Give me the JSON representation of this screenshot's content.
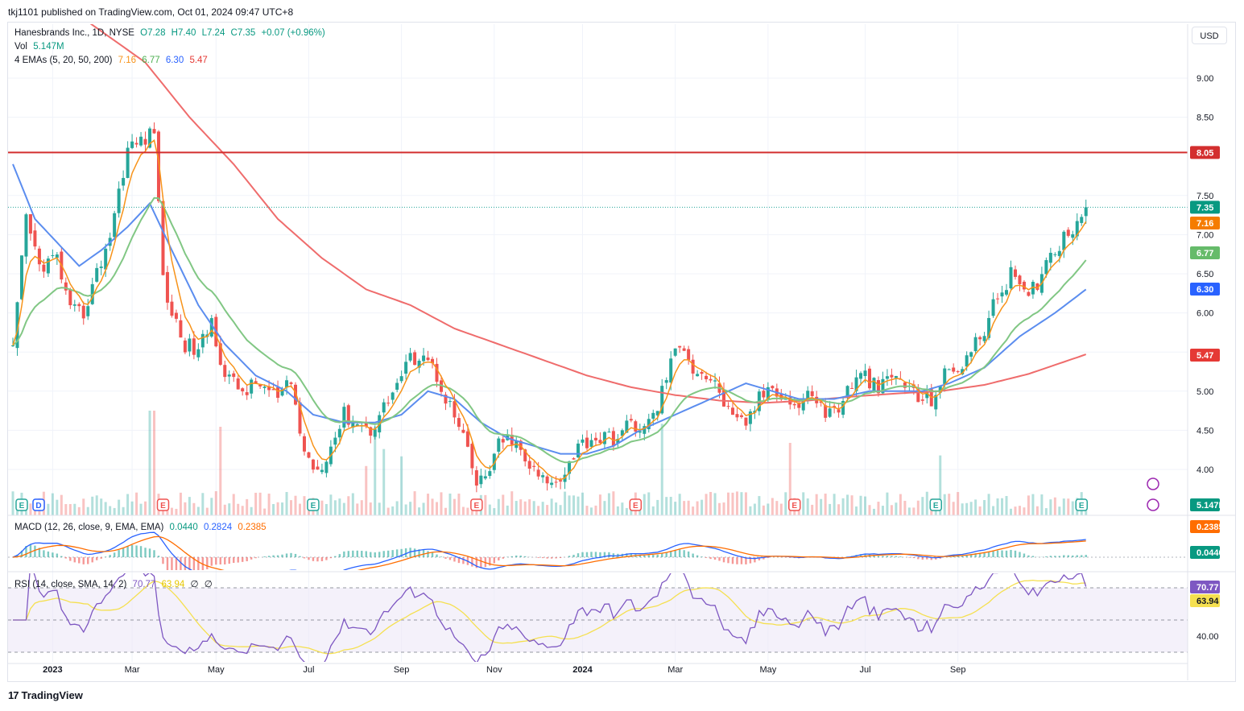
{
  "published_by": "tkj1101 published on TradingView.com, Oct 01, 2024 09:47 UTC+8",
  "currency_button": "USD",
  "footer_logo": "TradingView",
  "legend": {
    "symbol": "Hanesbrands Inc., 1D, NYSE",
    "open": "O7.28",
    "high": "H7.40",
    "low": "L7.24",
    "close": "C7.35",
    "change": "+0.07 (+0.96%)",
    "vol_label": "Vol",
    "vol_value": "5.147M",
    "ema_label": "4 EMAs (5, 20, 50, 200)",
    "ema5": "7.16",
    "ema20": "6.77",
    "ema50": "6.30",
    "ema200": "5.47",
    "macd_label": "MACD (12, 26, close, 9, EMA, EMA)",
    "macd_hist": "0.0440",
    "macd_line": "0.2824",
    "macd_signal": "0.2385",
    "rsi_label": "RSI (14, close, SMA, 14, 2)",
    "rsi_value": "70.77",
    "rsi_ma": "63.94",
    "rsi_extra1": "∅",
    "rsi_extra2": "∅"
  },
  "colors": {
    "up": "#26a69a",
    "down": "#ef5350",
    "ema5": "#f7931a",
    "ema20": "#81c784",
    "ema50": "#5b8def",
    "ema200": "#ef6c6c",
    "resistance": "#d32f2f",
    "macd": "#2962ff",
    "signal": "#ff6d00",
    "rsi": "#7e57c2",
    "rsi_ma": "#f5e050"
  },
  "chart_data": {
    "type": "candlestick",
    "symbol": "HBI",
    "timeframe": "1D",
    "exchange": "NYSE",
    "y_ticks": [
      "4.00",
      "4.50",
      "5.00",
      "5.50",
      "6.00",
      "6.50",
      "7.00",
      "7.50",
      "8.50",
      "9.00"
    ],
    "ylim": [
      3.5,
      9.5
    ],
    "x_labels": [
      "2023",
      "Mar",
      "May",
      "Jul",
      "Sep",
      "Nov",
      "2024",
      "Mar",
      "May",
      "Jul",
      "Sep"
    ],
    "resistance_level": 8.05,
    "resistance_label": "8.05",
    "last_price": 7.35,
    "last_price_label": "7.35",
    "close_path": [
      [
        0,
        5.5
      ],
      [
        3,
        7.2
      ],
      [
        6,
        6.6
      ],
      [
        10,
        6.7
      ],
      [
        13,
        6.0
      ],
      [
        16,
        6.0
      ],
      [
        19,
        6.5
      ],
      [
        22,
        7.0
      ],
      [
        26,
        8.1
      ],
      [
        29,
        8.2
      ],
      [
        32,
        8.3
      ],
      [
        33,
        7.5
      ],
      [
        34,
        6.4
      ],
      [
        36,
        6.0
      ],
      [
        39,
        5.6
      ],
      [
        42,
        5.5
      ],
      [
        45,
        5.9
      ],
      [
        48,
        5.2
      ],
      [
        52,
        5.0
      ],
      [
        56,
        5.1
      ],
      [
        60,
        4.9
      ],
      [
        63,
        5.1
      ],
      [
        66,
        4.2
      ],
      [
        69,
        4.0
      ],
      [
        72,
        4.3
      ],
      [
        75,
        4.7
      ],
      [
        78,
        4.6
      ],
      [
        81,
        4.5
      ],
      [
        84,
        4.8
      ],
      [
        87,
        5.1
      ],
      [
        90,
        5.4
      ],
      [
        93,
        5.5
      ],
      [
        96,
        5.2
      ],
      [
        99,
        4.8
      ],
      [
        102,
        4.4
      ],
      [
        105,
        3.8
      ],
      [
        107,
        3.9
      ],
      [
        110,
        4.3
      ],
      [
        113,
        4.4
      ],
      [
        116,
        4.1
      ],
      [
        119,
        3.9
      ],
      [
        122,
        3.8
      ],
      [
        125,
        4.0
      ],
      [
        128,
        4.3
      ],
      [
        131,
        4.4
      ],
      [
        134,
        4.4
      ],
      [
        137,
        4.4
      ],
      [
        140,
        4.6
      ],
      [
        143,
        4.5
      ],
      [
        146,
        4.8
      ],
      [
        149,
        5.4
      ],
      [
        152,
        5.6
      ],
      [
        154,
        5.3
      ],
      [
        157,
        5.2
      ],
      [
        160,
        5.0
      ],
      [
        163,
        4.6
      ],
      [
        166,
        4.6
      ],
      [
        169,
        4.9
      ],
      [
        172,
        5.1
      ],
      [
        175,
        4.9
      ],
      [
        178,
        4.8
      ],
      [
        181,
        5.0
      ],
      [
        184,
        4.7
      ],
      [
        187,
        4.8
      ],
      [
        190,
        5.1
      ],
      [
        193,
        5.2
      ],
      [
        196,
        5.0
      ],
      [
        199,
        5.2
      ],
      [
        202,
        5.1
      ],
      [
        205,
        4.9
      ],
      [
        208,
        4.9
      ],
      [
        211,
        5.2
      ],
      [
        214,
        5.3
      ],
      [
        217,
        5.5
      ],
      [
        220,
        5.8
      ],
      [
        223,
        6.2
      ],
      [
        226,
        6.5
      ],
      [
        229,
        6.2
      ],
      [
        232,
        6.4
      ],
      [
        234,
        6.7
      ],
      [
        237,
        6.9
      ],
      [
        240,
        7.1
      ],
      [
        243,
        7.4
      ]
    ],
    "last_index": 243,
    "emas": {
      "ema5": {
        "last": 7.16,
        "label": "7.16"
      },
      "ema20": {
        "last": 6.77,
        "label": "6.77"
      },
      "ema50": {
        "last": 6.3,
        "label": "6.30",
        "path": [
          [
            0,
            7.9
          ],
          [
            5,
            7.2
          ],
          [
            10,
            6.9
          ],
          [
            15,
            6.6
          ],
          [
            20,
            6.8
          ],
          [
            26,
            7.1
          ],
          [
            31,
            7.4
          ],
          [
            36,
            6.8
          ],
          [
            42,
            6.1
          ],
          [
            48,
            5.6
          ],
          [
            55,
            5.2
          ],
          [
            62,
            5.0
          ],
          [
            68,
            4.7
          ],
          [
            75,
            4.6
          ],
          [
            82,
            4.6
          ],
          [
            88,
            4.7
          ],
          [
            94,
            5.0
          ],
          [
            100,
            4.9
          ],
          [
            106,
            4.6
          ],
          [
            112,
            4.4
          ],
          [
            118,
            4.3
          ],
          [
            124,
            4.2
          ],
          [
            130,
            4.2
          ],
          [
            136,
            4.3
          ],
          [
            142,
            4.5
          ],
          [
            150,
            4.7
          ],
          [
            158,
            4.9
          ],
          [
            166,
            5.1
          ],
          [
            172,
            5.0
          ],
          [
            178,
            4.9
          ],
          [
            186,
            4.9
          ],
          [
            194,
            5.0
          ],
          [
            200,
            5.0
          ],
          [
            206,
            5.0
          ],
          [
            212,
            5.1
          ],
          [
            220,
            5.3
          ],
          [
            228,
            5.7
          ],
          [
            236,
            6.0
          ],
          [
            243,
            6.3
          ]
        ]
      },
      "ema200": {
        "last": 5.47,
        "label": "5.47",
        "path": [
          [
            0,
            10.4
          ],
          [
            10,
            10.0
          ],
          [
            20,
            9.6
          ],
          [
            30,
            9.2
          ],
          [
            40,
            8.5
          ],
          [
            50,
            7.9
          ],
          [
            60,
            7.2
          ],
          [
            70,
            6.7
          ],
          [
            80,
            6.3
          ],
          [
            90,
            6.1
          ],
          [
            100,
            5.8
          ],
          [
            110,
            5.6
          ],
          [
            120,
            5.4
          ],
          [
            130,
            5.2
          ],
          [
            140,
            5.05
          ],
          [
            150,
            4.95
          ],
          [
            160,
            4.88
          ],
          [
            170,
            4.85
          ],
          [
            180,
            4.88
          ],
          [
            190,
            4.93
          ],
          [
            200,
            4.97
          ],
          [
            210,
            5.0
          ],
          [
            220,
            5.08
          ],
          [
            230,
            5.22
          ],
          [
            243,
            5.47
          ]
        ]
      }
    },
    "volume": {
      "last_label": "5.147M"
    },
    "events": {
      "earnings": [
        "E",
        "E",
        "E",
        "E",
        "E",
        "E",
        "E",
        "E",
        "E"
      ],
      "dividend": "D"
    },
    "macd": {
      "label_hist": "0.0440",
      "label_signal": "0.2385"
    },
    "rsi": {
      "ticks": [
        "40.00"
      ],
      "label_value": "70.77",
      "label_ma": "63.94",
      "overbought": 70,
      "oversold": 30,
      "ylim": [
        20,
        80
      ]
    }
  }
}
